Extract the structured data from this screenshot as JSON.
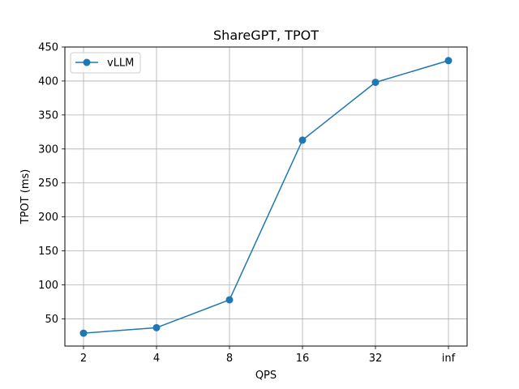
{
  "chart_data": {
    "type": "line",
    "title": "ShareGPT, TPOT",
    "xlabel": "QPS",
    "ylabel": "TPOT (ms)",
    "categories": [
      "2",
      "4",
      "8",
      "16",
      "32",
      "inf"
    ],
    "ylim": [
      10,
      450
    ],
    "yticks": [
      50,
      100,
      150,
      200,
      250,
      300,
      350,
      400,
      450
    ],
    "grid": true,
    "legend_position": "top-left",
    "series": [
      {
        "name": "vLLM",
        "color": "#1f77b4",
        "marker": "circle",
        "values": [
          29,
          37,
          78,
          313,
          398,
          430
        ]
      }
    ]
  }
}
